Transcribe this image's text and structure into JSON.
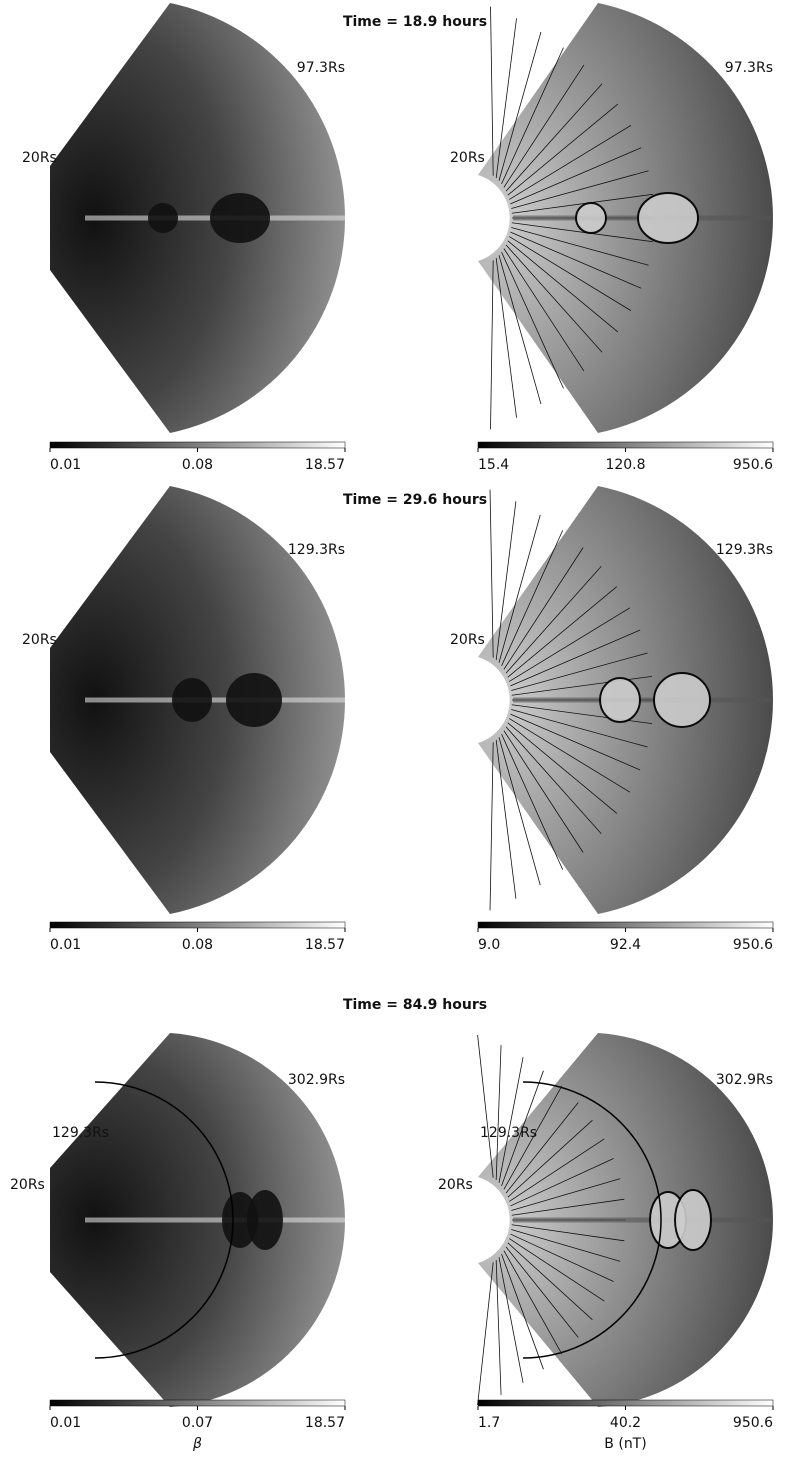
{
  "rows": [
    {
      "title": "Time = 18.9 hours",
      "panels": [
        {
          "outer_label": "97.3Rs",
          "inner_label": "20Rs",
          "colorbar_labels": [
            "0.01",
            "0.08",
            "18.57"
          ]
        },
        {
          "outer_label": "97.3Rs",
          "inner_label": "20Rs",
          "colorbar_labels": [
            "15.4",
            "120.8",
            "950.6"
          ]
        }
      ]
    },
    {
      "title": "Time = 29.6 hours",
      "panels": [
        {
          "outer_label": "129.3Rs",
          "inner_label": "20Rs",
          "colorbar_labels": [
            "0.01",
            "0.08",
            "18.57"
          ]
        },
        {
          "outer_label": "129.3Rs",
          "inner_label": "20Rs",
          "colorbar_labels": [
            "9.0",
            "92.4",
            "950.6"
          ]
        }
      ]
    },
    {
      "title": "Time = 84.9 hours",
      "panels": [
        {
          "outer_label": "302.9Rs",
          "mid_label": "129.3Rs",
          "inner_label": "20Rs",
          "colorbar_labels": [
            "0.01",
            "0.07",
            "18.57"
          ]
        },
        {
          "outer_label": "302.9Rs",
          "mid_label": "129.3Rs",
          "inner_label": "20Rs",
          "colorbar_labels": [
            "1.7",
            "40.2",
            "950.6"
          ]
        }
      ]
    }
  ],
  "colorbar_titles": [
    "β",
    "B (nT)"
  ]
}
